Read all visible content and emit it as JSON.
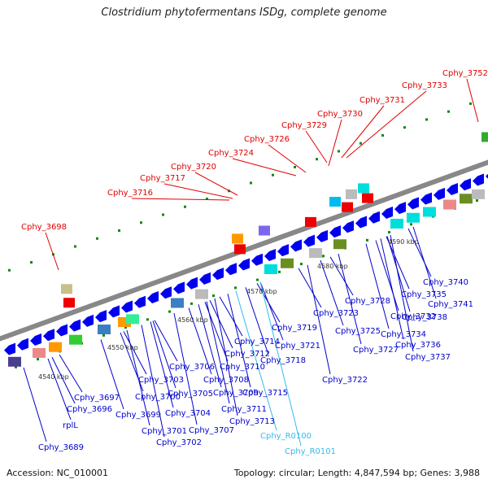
{
  "title": "Clostridium phytofermentans ISDg, complete genome",
  "footer": {
    "accession": "Accession: NC_010001",
    "summary": "Topology: circular; Length: 4,847,594 bp; Genes: 3,988"
  },
  "colors": {
    "forward_label": "#e00000",
    "reverse_label": "#0000cc",
    "rna_label": "#33bbee",
    "backbone": "#888888",
    "tick": "#118811"
  },
  "scale_ticks": [
    "4540 kbp",
    "4550 kbp",
    "4560 kbp",
    "4570 kbp",
    "4580 kbp",
    "4590 kbp"
  ],
  "forward_labels": [
    "Cphy_3698",
    "Cphy_3716",
    "Cphy_3717",
    "Cphy_3720",
    "Cphy_3724",
    "Cphy_3726",
    "Cphy_3729",
    "Cphy_3730",
    "Cphy_3731",
    "Cphy_3733",
    "Cphy_3752"
  ],
  "reverse_labels": [
    "Cphy_3689",
    "rplL",
    "Cphy_3696",
    "Cphy_3697",
    "Cphy_3699",
    "Cphy_3700",
    "Cphy_3701",
    "Cphy_3702",
    "Cphy_3703",
    "Cphy_3704",
    "Cphy_3705",
    "Cphy_3706",
    "Cphy_3707",
    "Cphy_3708",
    "Cphy_3709",
    "Cphy_3710",
    "Cphy_3711",
    "Cphy_3712",
    "Cphy_3713",
    "Cphy_3714",
    "Cphy_3715",
    "Cphy_3718",
    "Cphy_3719",
    "Cphy_3721",
    "Cphy_3722",
    "Cphy_3723",
    "Cphy_3725",
    "Cphy_3727",
    "Cphy_3728",
    "Cphy_3732",
    "Cphy_3734",
    "Cphy_3735",
    "Cphy_3736",
    "Cphy_3737",
    "Cphy_3738",
    "Cphy_3740",
    "Cphy_3741"
  ],
  "rna_labels": [
    "Cphy_R0100",
    "Cphy_R0101"
  ]
}
